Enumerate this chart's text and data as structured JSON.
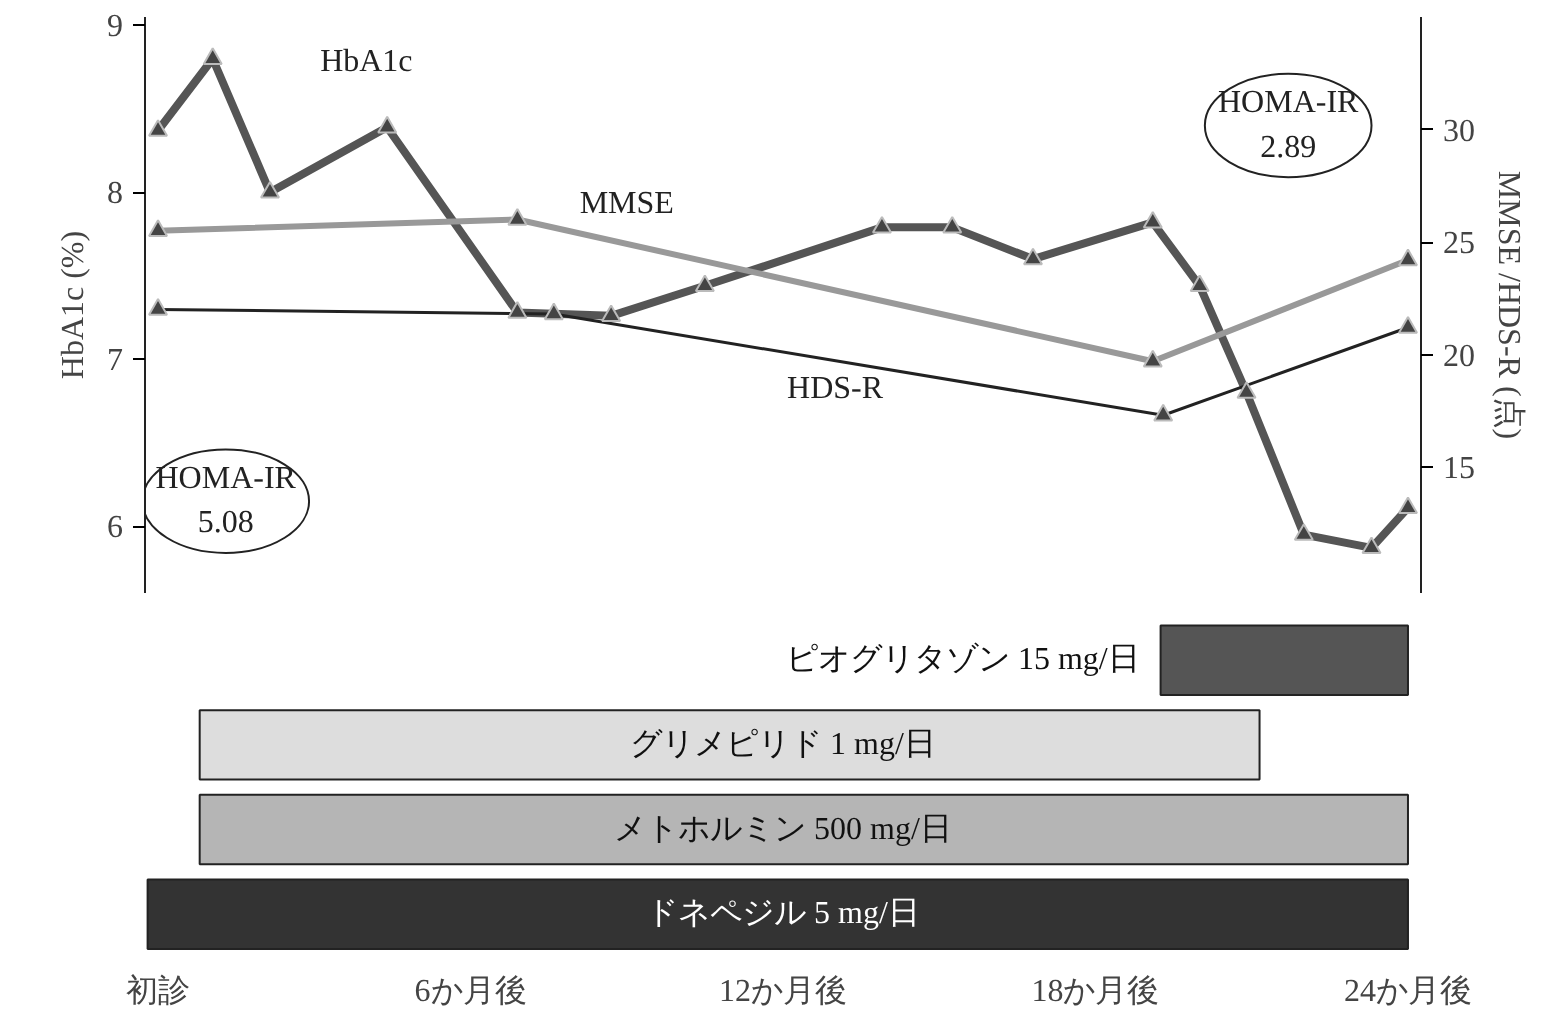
{
  "chart_data": [
    {
      "type": "line",
      "ylabel": "HbA1c (%)",
      "y2label": "MMSE /HDS-R (点)",
      "xlim": [
        -0.25,
        24.25
      ],
      "ylim": [
        5.6,
        9.05
      ],
      "yticks": [
        6,
        7,
        8,
        9
      ],
      "y2lim": [
        9.4,
        35.0
      ],
      "y2ticks": [
        15,
        20,
        25,
        30
      ],
      "tick_labels": "y",
      "grid": false,
      "legend": false,
      "marker": "triangle",
      "series": [
        {
          "name": "HbA1c",
          "color": "#555555",
          "x": [
            0,
            1.05,
            2.15,
            4.4,
            6.9,
            8.7,
            10.5,
            13.9,
            15.25,
            16.8,
            19.1,
            20.0,
            20.9,
            22.0,
            23.3,
            24
          ],
          "values": [
            8.37,
            8.8,
            8.0,
            8.39,
            7.28,
            7.26,
            7.44,
            7.79,
            7.79,
            7.6,
            7.82,
            7.44,
            6.8,
            5.95,
            5.87,
            6.11
          ]
        },
        {
          "name": "MMSE",
          "color": "#999999",
          "axis": "y2",
          "x": [
            0,
            6.9,
            19.1,
            24
          ],
          "values": [
            25.5,
            26.0,
            19.7,
            24.2
          ]
        },
        {
          "name": "HDS-R",
          "color": "#222222",
          "axis": "y2",
          "x": [
            0,
            7.6,
            19.3,
            24
          ],
          "values": [
            22.0,
            21.8,
            17.3,
            21.2
          ]
        }
      ],
      "annotations": [
        "HOMA-IR\n5.08",
        "HOMA-IR\n2.89"
      ]
    },
    {
      "type": "bar",
      "orientation": "horizontal",
      "categories": [
        "ピオグリタゾン 15 mg/日",
        "グリメピリド 1 mg/日",
        "メトホルミン 500 mg/日",
        "ドネペジル 5 mg/日"
      ],
      "base": [
        19.25,
        0.8,
        0.8,
        -0.2
      ],
      "values": [
        4.75,
        20.35,
        23.2,
        24.2
      ],
      "colors": [
        "#555555",
        "#dddddd",
        "#b5b5b5",
        "#333333"
      ],
      "xlim": [
        -0.25,
        24.25
      ],
      "xticks": [
        {
          "value": 0,
          "label": "初診"
        },
        {
          "value": 6,
          "label": "6か月後"
        },
        {
          "value": 12,
          "label": "12か月後"
        },
        {
          "value": 18,
          "label": "18か月後"
        },
        {
          "value": 24,
          "label": "24か月後"
        }
      ],
      "tick_labels": "x",
      "grid": false,
      "legend": false
    }
  ]
}
